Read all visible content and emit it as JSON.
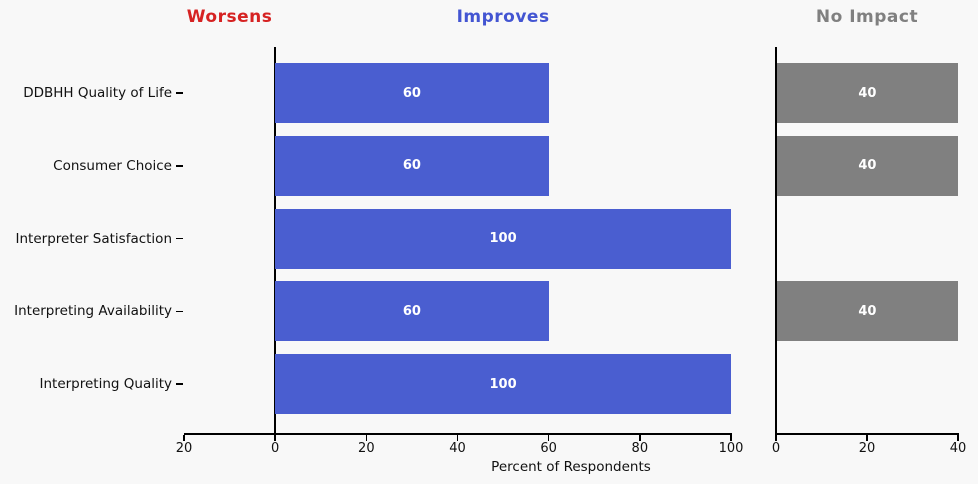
{
  "chart_data": {
    "type": "bar",
    "orientation": "horizontal",
    "panel_titles": [
      {
        "label": "Worsens",
        "color": "#d62222"
      },
      {
        "label": "Improves",
        "color": "#4355d2"
      },
      {
        "label": "No Impact",
        "color": "#808080"
      }
    ],
    "categories": [
      "DDBHH Quality of Life",
      "Consumer Choice",
      "Interpreter Satisfaction",
      "Interpreting Availability",
      "Interpreting Quality"
    ],
    "series": [
      {
        "name": "Worsens",
        "color": "#d62222",
        "axis": "main",
        "values": [
          0,
          0,
          0,
          0,
          0
        ]
      },
      {
        "name": "Improves",
        "color": "#4a5ed0",
        "axis": "main",
        "values": [
          60,
          60,
          100,
          60,
          100
        ]
      },
      {
        "name": "No Impact",
        "color": "#808080",
        "axis": "no_impact",
        "values": [
          40,
          40,
          0,
          40,
          0
        ]
      }
    ],
    "bar_value_labels": true,
    "bar_label_color": "#ffffff",
    "xlabel": "Percent of Respondents",
    "axes": {
      "main": {
        "xlim": [
          -20,
          100
        ],
        "ticks": [
          {
            "v": -20,
            "label": "20"
          },
          {
            "v": 0,
            "label": "0"
          },
          {
            "v": 20,
            "label": "20"
          },
          {
            "v": 40,
            "label": "40"
          },
          {
            "v": 60,
            "label": "60"
          },
          {
            "v": 80,
            "label": "80"
          },
          {
            "v": 100,
            "label": "100"
          }
        ]
      },
      "no_impact": {
        "xlim": [
          0,
          40
        ],
        "ticks": [
          {
            "v": 0,
            "label": "0"
          },
          {
            "v": 20,
            "label": "20"
          },
          {
            "v": 40,
            "label": "40"
          }
        ]
      }
    },
    "colors": {
      "background": "#f8f8f8",
      "axis": "#000000",
      "tick_label": "#111111",
      "category_label": "#111111"
    },
    "grid": false,
    "legend": "none"
  }
}
